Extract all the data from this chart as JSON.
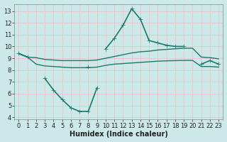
{
  "xlabel": "Humidex (Indice chaleur)",
  "bg_color": "#cce8e8",
  "line_color": "#1a7a6e",
  "grid_color": "#e8c8c8",
  "x_values": [
    0,
    1,
    2,
    3,
    4,
    5,
    6,
    7,
    8,
    9,
    10,
    11,
    12,
    13,
    14,
    15,
    16,
    17,
    18,
    19,
    20,
    21,
    22,
    23
  ],
  "line_spike_y": [
    9.4,
    9.1,
    null,
    null,
    null,
    null,
    null,
    null,
    8.3,
    null,
    9.8,
    10.7,
    11.8,
    13.2,
    12.3,
    10.5,
    10.3,
    10.1,
    10.0,
    10.0,
    null,
    8.5,
    8.8,
    8.5
  ],
  "line_top_y": [
    9.4,
    9.1,
    9.05,
    8.9,
    8.85,
    8.8,
    8.8,
    8.8,
    8.8,
    8.85,
    9.0,
    9.15,
    9.3,
    9.45,
    9.55,
    9.6,
    9.7,
    9.75,
    9.8,
    9.85,
    9.85,
    9.1,
    9.05,
    8.95
  ],
  "line_bot_y": [
    9.4,
    9.1,
    8.5,
    8.35,
    8.3,
    8.25,
    8.2,
    8.2,
    8.2,
    8.25,
    8.4,
    8.5,
    8.55,
    8.6,
    8.65,
    8.7,
    8.75,
    8.78,
    8.8,
    8.82,
    8.82,
    8.3,
    8.3,
    8.25
  ],
  "line_dip_y": [
    null,
    null,
    null,
    7.3,
    6.3,
    5.5,
    4.8,
    4.5,
    4.5,
    6.5,
    null,
    null,
    null,
    null,
    null,
    null,
    null,
    null,
    null,
    null,
    null,
    null,
    null,
    null
  ],
  "ylim": [
    3.8,
    13.6
  ],
  "yticks": [
    4,
    5,
    6,
    7,
    8,
    9,
    10,
    11,
    12,
    13
  ],
  "xlim": [
    -0.5,
    23.5
  ],
  "xticks": [
    0,
    1,
    2,
    3,
    4,
    5,
    6,
    7,
    8,
    9,
    10,
    11,
    12,
    13,
    14,
    15,
    16,
    17,
    18,
    19,
    20,
    21,
    22,
    23
  ],
  "xlabel_fontsize": 7,
  "tick_fontsize": 6
}
